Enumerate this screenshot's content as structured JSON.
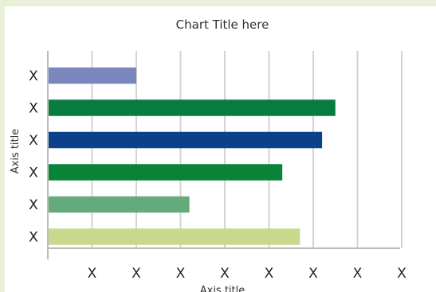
{
  "chart_data": {
    "type": "bar",
    "orientation": "horizontal",
    "title": "Chart Title here",
    "xlabel": "Axis title",
    "ylabel": "Axis title",
    "categories": [
      "X",
      "X",
      "X",
      "X",
      "X",
      "X"
    ],
    "values": [
      2,
      6.5,
      6.2,
      5.3,
      3.2,
      5.7
    ],
    "colors": [
      "#7b86bd",
      "#087c3e",
      "#0b418b",
      "#098337",
      "#64aa7a",
      "#c8d98e"
    ],
    "x_tick_labels": [
      "X",
      "X",
      "X",
      "X",
      "X",
      "X",
      "X",
      "X"
    ],
    "xlim": [
      0,
      8
    ],
    "grid": true,
    "legend": "none"
  }
}
